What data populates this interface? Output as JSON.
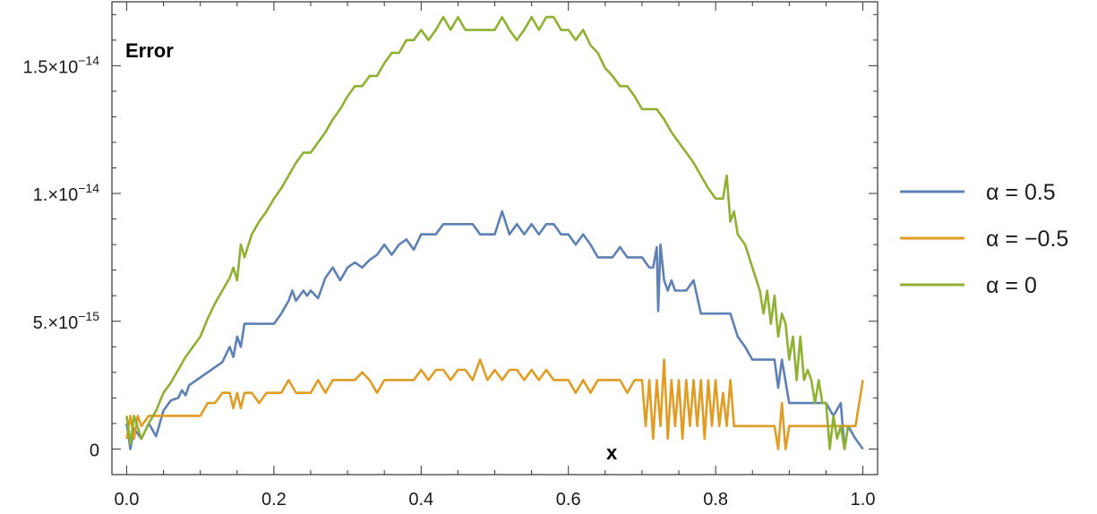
{
  "chart_data": {
    "type": "line",
    "ylabel": "Error",
    "xlabel": "x",
    "xlim": [
      -0.02,
      1.02
    ],
    "ylim": [
      -1e-15,
      1.75e-14
    ],
    "x_ticks": [
      {
        "value": 0.0,
        "label": "0.0"
      },
      {
        "value": 0.2,
        "label": "0.2"
      },
      {
        "value": 0.4,
        "label": "0.4"
      },
      {
        "value": 0.6,
        "label": "0.6"
      },
      {
        "value": 0.8,
        "label": "0.8"
      },
      {
        "value": 1.0,
        "label": "1.0"
      }
    ],
    "y_ticks": [
      {
        "value": 0,
        "mantissa": "0",
        "exponent": ""
      },
      {
        "value": 5e-15,
        "mantissa": "5.×10",
        "exponent": "−15"
      },
      {
        "value": 1e-14,
        "mantissa": "1.×10",
        "exponent": "−14"
      },
      {
        "value": 1.5e-14,
        "mantissa": "1.5×10",
        "exponent": "−14"
      }
    ],
    "legend_position": "right",
    "series": [
      {
        "name": "α = 0.5",
        "color": "#5e81b5",
        "x": [
          0.0,
          0.005,
          0.01,
          0.02,
          0.03,
          0.04,
          0.05,
          0.06,
          0.07,
          0.075,
          0.08,
          0.085,
          0.09,
          0.1,
          0.11,
          0.12,
          0.13,
          0.14,
          0.145,
          0.15,
          0.155,
          0.16,
          0.17,
          0.2,
          0.21,
          0.22,
          0.225,
          0.23,
          0.24,
          0.245,
          0.25,
          0.26,
          0.27,
          0.28,
          0.29,
          0.3,
          0.31,
          0.32,
          0.33,
          0.34,
          0.35,
          0.36,
          0.37,
          0.38,
          0.39,
          0.4,
          0.41,
          0.42,
          0.43,
          0.44,
          0.45,
          0.46,
          0.47,
          0.48,
          0.49,
          0.5,
          0.51,
          0.52,
          0.53,
          0.54,
          0.55,
          0.56,
          0.57,
          0.58,
          0.59,
          0.6,
          0.61,
          0.62,
          0.63,
          0.64,
          0.65,
          0.66,
          0.67,
          0.68,
          0.69,
          0.7,
          0.71,
          0.715,
          0.72,
          0.722,
          0.725,
          0.73,
          0.735,
          0.74,
          0.745,
          0.75,
          0.76,
          0.77,
          0.78,
          0.8,
          0.82,
          0.83,
          0.84,
          0.85,
          0.86,
          0.87,
          0.88,
          0.885,
          0.89,
          0.9,
          0.91,
          0.92,
          0.93,
          0.94,
          0.95,
          0.96,
          0.97,
          0.975,
          0.98,
          0.99,
          1.0
        ],
        "values": [
          1e-15,
          0.0,
          8e-16,
          4e-16,
          1e-15,
          5e-16,
          1.5e-15,
          1.9e-15,
          2e-15,
          2.3e-15,
          2.1e-15,
          2.5e-15,
          2.6e-15,
          2.8e-15,
          3e-15,
          3.2e-15,
          3.4e-15,
          4e-15,
          3.6e-15,
          4.4e-15,
          4e-15,
          4.9e-15,
          4.9e-15,
          4.9e-15,
          5.3e-15,
          5.8e-15,
          6.2e-15,
          5.8e-15,
          6.2e-15,
          6e-15,
          6.2e-15,
          5.9e-15,
          6.7e-15,
          7.1e-15,
          6.6e-15,
          7.1e-15,
          7.3e-15,
          7.1e-15,
          7.4e-15,
          7.6e-15,
          8e-15,
          7.6e-15,
          8e-15,
          8.2e-15,
          7.8e-15,
          8.4e-15,
          8.4e-15,
          8.4e-15,
          8.8e-15,
          8.8e-15,
          8.8e-15,
          8.8e-15,
          8.8e-15,
          8.4e-15,
          8.4e-15,
          8.4e-15,
          9.3e-15,
          8.4e-15,
          8.8e-15,
          8.4e-15,
          8.8e-15,
          8.4e-15,
          8.8e-15,
          8.8e-15,
          8.4e-15,
          8.4e-15,
          8e-15,
          8.4e-15,
          8e-15,
          7.5e-15,
          7.5e-15,
          7.5e-15,
          7.9e-15,
          7.5e-15,
          7.5e-15,
          7.5e-15,
          7.1e-15,
          7.1e-15,
          7.9e-15,
          5.4e-15,
          8e-15,
          6.6e-15,
          6.2e-15,
          6.6e-15,
          6.2e-15,
          6.2e-15,
          6.2e-15,
          6.6e-15,
          5.3e-15,
          5.3e-15,
          5.3e-15,
          4.4e-15,
          4e-15,
          3.5e-15,
          3.5e-15,
          3.5e-15,
          3.5e-15,
          2.4e-15,
          3.5e-15,
          1.8e-15,
          1.8e-15,
          1.8e-15,
          1.8e-15,
          1.8e-15,
          1.8e-15,
          1.3e-15,
          1.8e-15,
          0.0,
          9e-16,
          4e-16,
          0.0
        ]
      },
      {
        "name": "α = −0.5",
        "color": "#e19c24",
        "x": [
          0.0,
          0.005,
          0.01,
          0.015,
          0.02,
          0.03,
          0.04,
          0.05,
          0.06,
          0.08,
          0.1,
          0.11,
          0.12,
          0.13,
          0.14,
          0.145,
          0.15,
          0.155,
          0.16,
          0.17,
          0.18,
          0.19,
          0.2,
          0.21,
          0.22,
          0.23,
          0.24,
          0.25,
          0.26,
          0.27,
          0.28,
          0.29,
          0.3,
          0.31,
          0.32,
          0.33,
          0.34,
          0.35,
          0.36,
          0.37,
          0.38,
          0.39,
          0.4,
          0.41,
          0.42,
          0.43,
          0.44,
          0.45,
          0.46,
          0.47,
          0.48,
          0.49,
          0.5,
          0.51,
          0.52,
          0.53,
          0.54,
          0.55,
          0.56,
          0.57,
          0.58,
          0.59,
          0.6,
          0.61,
          0.62,
          0.63,
          0.64,
          0.65,
          0.66,
          0.67,
          0.68,
          0.69,
          0.7,
          0.705,
          0.71,
          0.715,
          0.72,
          0.725,
          0.73,
          0.735,
          0.74,
          0.745,
          0.75,
          0.755,
          0.76,
          0.765,
          0.77,
          0.775,
          0.78,
          0.785,
          0.79,
          0.795,
          0.8,
          0.805,
          0.81,
          0.815,
          0.82,
          0.825,
          0.83,
          0.84,
          0.85,
          0.86,
          0.87,
          0.88,
          0.885,
          0.89,
          0.895,
          0.9,
          0.91,
          0.92,
          0.93,
          0.94,
          0.95,
          0.96,
          0.97,
          0.98,
          0.99,
          1.0
        ],
        "values": [
          4e-16,
          1.3e-15,
          4e-16,
          1.3e-15,
          9e-16,
          1.3e-15,
          1.3e-15,
          1.3e-15,
          1.3e-15,
          1.3e-15,
          1.3e-15,
          1.8e-15,
          1.8e-15,
          2.2e-15,
          2.2e-15,
          1.6e-15,
          2.2e-15,
          1.6e-15,
          2.2e-15,
          2.2e-15,
          1.8e-15,
          2.2e-15,
          2.2e-15,
          2.2e-15,
          2.7e-15,
          2.2e-15,
          2.2e-15,
          2.2e-15,
          2.7e-15,
          2.2e-15,
          2.7e-15,
          2.7e-15,
          2.7e-15,
          2.7e-15,
          3e-15,
          2.7e-15,
          2.2e-15,
          2.7e-15,
          2.7e-15,
          2.7e-15,
          2.7e-15,
          2.7e-15,
          3.1e-15,
          2.7e-15,
          3.1e-15,
          3.1e-15,
          2.7e-15,
          3.1e-15,
          3.1e-15,
          2.7e-15,
          3.5e-15,
          2.7e-15,
          3.1e-15,
          2.7e-15,
          3.1e-15,
          3.1e-15,
          2.7e-15,
          3.1e-15,
          2.7e-15,
          3.1e-15,
          2.7e-15,
          2.7e-15,
          2.7e-15,
          2.2e-15,
          2.7e-15,
          2.2e-15,
          2.7e-15,
          2.7e-15,
          2.7e-15,
          2.7e-15,
          2.2e-15,
          2.7e-15,
          2.7e-15,
          9e-16,
          2.7e-15,
          4e-16,
          2.7e-15,
          9e-16,
          3.5e-15,
          4e-16,
          2.7e-15,
          9e-16,
          2.7e-15,
          4e-16,
          2.7e-15,
          9e-16,
          2.7e-15,
          9e-16,
          2.7e-15,
          4e-16,
          2.7e-15,
          9e-16,
          2.7e-15,
          9e-16,
          2.2e-15,
          9e-16,
          2.7e-15,
          9e-16,
          9e-16,
          9e-16,
          9e-16,
          9e-16,
          9e-16,
          9e-16,
          0.0,
          1.8e-15,
          0.0,
          9e-16,
          9e-16,
          9e-16,
          9e-16,
          9e-16,
          9e-16,
          9e-16,
          9e-16,
          9e-16,
          9e-16,
          2.7e-15
        ]
      },
      {
        "name": "α = 0",
        "color": "#8fb131",
        "x": [
          0.0,
          0.005,
          0.01,
          0.02,
          0.03,
          0.04,
          0.05,
          0.06,
          0.07,
          0.08,
          0.09,
          0.1,
          0.11,
          0.12,
          0.13,
          0.14,
          0.145,
          0.15,
          0.155,
          0.16,
          0.17,
          0.18,
          0.19,
          0.2,
          0.21,
          0.22,
          0.23,
          0.24,
          0.25,
          0.26,
          0.27,
          0.28,
          0.29,
          0.3,
          0.31,
          0.32,
          0.33,
          0.34,
          0.35,
          0.36,
          0.37,
          0.38,
          0.39,
          0.4,
          0.41,
          0.42,
          0.43,
          0.44,
          0.45,
          0.46,
          0.47,
          0.48,
          0.49,
          0.5,
          0.51,
          0.52,
          0.53,
          0.54,
          0.55,
          0.56,
          0.57,
          0.58,
          0.59,
          0.6,
          0.61,
          0.62,
          0.63,
          0.64,
          0.65,
          0.66,
          0.67,
          0.68,
          0.69,
          0.7,
          0.71,
          0.72,
          0.73,
          0.74,
          0.75,
          0.76,
          0.77,
          0.78,
          0.79,
          0.8,
          0.81,
          0.815,
          0.82,
          0.825,
          0.83,
          0.84,
          0.85,
          0.86,
          0.865,
          0.87,
          0.875,
          0.88,
          0.885,
          0.89,
          0.895,
          0.9,
          0.905,
          0.91,
          0.915,
          0.92,
          0.925,
          0.93,
          0.935,
          0.94,
          0.945,
          0.95,
          0.955,
          0.96,
          0.965,
          0.97,
          0.975,
          0.98
        ],
        "values": [
          1.3e-15,
          2e-16,
          1.3e-15,
          4e-16,
          1e-15,
          1.5e-15,
          2.2e-15,
          2.6e-15,
          3.1e-15,
          3.6e-15,
          4e-15,
          4.4e-15,
          5.1e-15,
          5.7e-15,
          6.2e-15,
          6.7e-15,
          7.1e-15,
          6.6e-15,
          8e-15,
          7.5e-15,
          8.4e-15,
          8.9e-15,
          9.3e-15,
          9.8e-15,
          1.02e-14,
          1.07e-14,
          1.12e-14,
          1.16e-14,
          1.16e-14,
          1.2e-14,
          1.24e-14,
          1.29e-14,
          1.33e-14,
          1.38e-14,
          1.42e-14,
          1.42e-14,
          1.46e-14,
          1.46e-14,
          1.51e-14,
          1.55e-14,
          1.55e-14,
          1.6e-14,
          1.6e-14,
          1.64e-14,
          1.6e-14,
          1.64e-14,
          1.69e-14,
          1.64e-14,
          1.69e-14,
          1.64e-14,
          1.64e-14,
          1.64e-14,
          1.64e-14,
          1.64e-14,
          1.69e-14,
          1.64e-14,
          1.6e-14,
          1.64e-14,
          1.69e-14,
          1.64e-14,
          1.69e-14,
          1.69e-14,
          1.64e-14,
          1.64e-14,
          1.6e-14,
          1.64e-14,
          1.58e-14,
          1.55e-14,
          1.49e-14,
          1.46e-14,
          1.42e-14,
          1.42e-14,
          1.38e-14,
          1.33e-14,
          1.33e-14,
          1.33e-14,
          1.29e-14,
          1.24e-14,
          1.2e-14,
          1.16e-14,
          1.12e-14,
          1.07e-14,
          1.02e-14,
          9.8e-15,
          9.8e-15,
          1.07e-14,
          8.9e-15,
          9.3e-15,
          8.4e-15,
          8e-15,
          7.1e-15,
          6.2e-15,
          5.3e-15,
          6.2e-15,
          4.9e-15,
          6e-15,
          4.4e-15,
          5.3e-15,
          4.9e-15,
          3.5e-15,
          4.4e-15,
          2.7e-15,
          4.4e-15,
          2.7e-15,
          3.1e-15,
          2.7e-15,
          1.8e-15,
          2.7e-15,
          1.8e-15,
          1.8e-15,
          0.0,
          1.3e-15,
          4e-16,
          9e-16,
          0.0,
          9e-16
        ]
      }
    ]
  }
}
